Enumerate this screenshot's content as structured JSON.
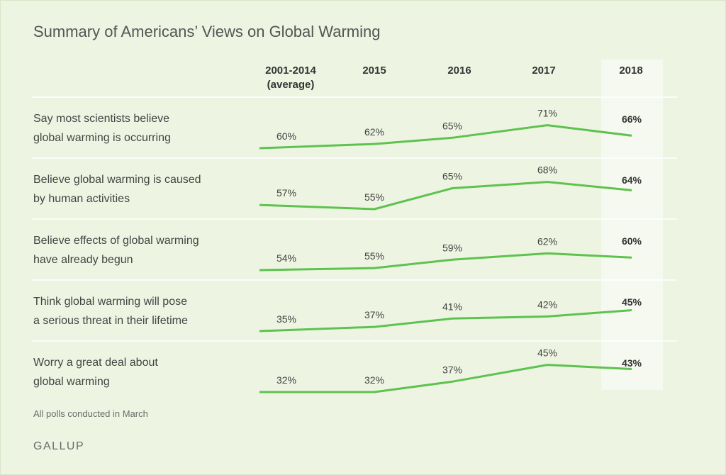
{
  "title": "Summary of Americans’ Views on Global Warming",
  "footnote": "All polls conducted in March",
  "brand": "GALLUP",
  "colors": {
    "background": "#edf5e2",
    "line": "#5ec24f",
    "highlight_column": "#f5f9ef",
    "divider": "#ffffff"
  },
  "chart_data": {
    "type": "line",
    "categories": [
      "2001-2014 (average)",
      "2015",
      "2016",
      "2017",
      "2018"
    ],
    "category_lines": [
      [
        "2001-2014",
        "(average)"
      ],
      [
        "2015"
      ],
      [
        "2016"
      ],
      [
        "2017"
      ],
      [
        "2018"
      ]
    ],
    "highlight_category": "2018",
    "unit": "%",
    "series": [
      {
        "name": "Say most scientists believe global warming is occurring",
        "label_lines": [
          "Say most scientists believe",
          "global warming is occurring"
        ],
        "values": [
          60,
          62,
          65,
          71,
          66
        ]
      },
      {
        "name": "Believe global warming is caused by human activities",
        "label_lines": [
          "Believe global warming is caused",
          "by human activities"
        ],
        "values": [
          57,
          55,
          65,
          68,
          64
        ]
      },
      {
        "name": "Believe effects of global warming have already begun",
        "label_lines": [
          "Believe effects of global warming",
          "have already begun"
        ],
        "values": [
          54,
          55,
          59,
          62,
          60
        ]
      },
      {
        "name": "Think global warming will pose a serious threat in their lifetime",
        "label_lines": [
          "Think global warming will pose",
          "a serious threat in their lifetime"
        ],
        "values": [
          35,
          37,
          41,
          42,
          45
        ]
      },
      {
        "name": "Worry a great deal about global warming",
        "label_lines": [
          "Worry a great deal about",
          "global warming"
        ],
        "values": [
          32,
          32,
          37,
          45,
          43
        ]
      }
    ],
    "grid": false,
    "legend": "row labels on left"
  }
}
